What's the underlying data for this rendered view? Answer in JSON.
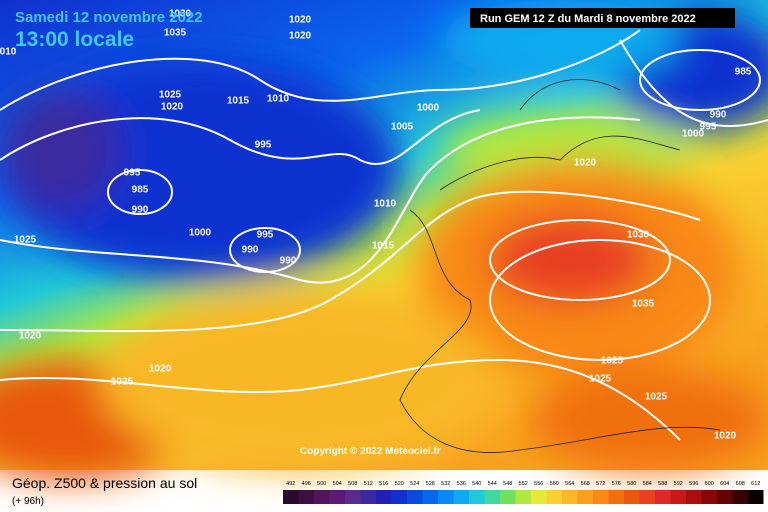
{
  "header": {
    "date": "Samedi 12 novembre 2022",
    "time": "13:00 locale",
    "run": "Run GEM 12 Z du Mardi 8 novembre 2022"
  },
  "copyright": "Copyright © 2022 Meteociel.fr",
  "footer": {
    "title": "Géop. Z500 & pression au sol",
    "lead": "(+ 96h)"
  },
  "isobar_labels": [
    "1030",
    "1035",
    "1020",
    "1020",
    "010",
    "1025",
    "1020",
    "1015",
    "1010",
    "1000",
    "1005",
    "995",
    "995",
    "985",
    "990",
    "1000",
    "995",
    "990",
    "990",
    "1010",
    "1015",
    "1025",
    "1020",
    "1025",
    "1020",
    "985",
    "990",
    "995",
    "1000",
    "1020",
    "1030",
    "1035",
    "1025",
    "1025",
    "1025",
    "1020"
  ],
  "legend": {
    "ticks": [
      492,
      496,
      500,
      504,
      508,
      512,
      516,
      520,
      524,
      528,
      532,
      536,
      540,
      544,
      548,
      552,
      556,
      560,
      564,
      568,
      572,
      576,
      580,
      584,
      588,
      592,
      596,
      600,
      604,
      608,
      612
    ],
    "colors": [
      "#2a0a2e",
      "#3d0f44",
      "#52155c",
      "#5e1a72",
      "#5a2a8c",
      "#3a2aa0",
      "#2020b8",
      "#1030d0",
      "#0a4ae0",
      "#0a66ee",
      "#0a88f4",
      "#10aaf0",
      "#20c8d8",
      "#40d8a0",
      "#70e060",
      "#b0e840",
      "#e8e838",
      "#f8d030",
      "#f8b828",
      "#f8a020",
      "#f88818",
      "#f07010",
      "#e85810",
      "#e84020",
      "#e02828",
      "#c81818",
      "#a81010",
      "#880808",
      "#600404",
      "#380202",
      "#0a0000"
    ]
  }
}
